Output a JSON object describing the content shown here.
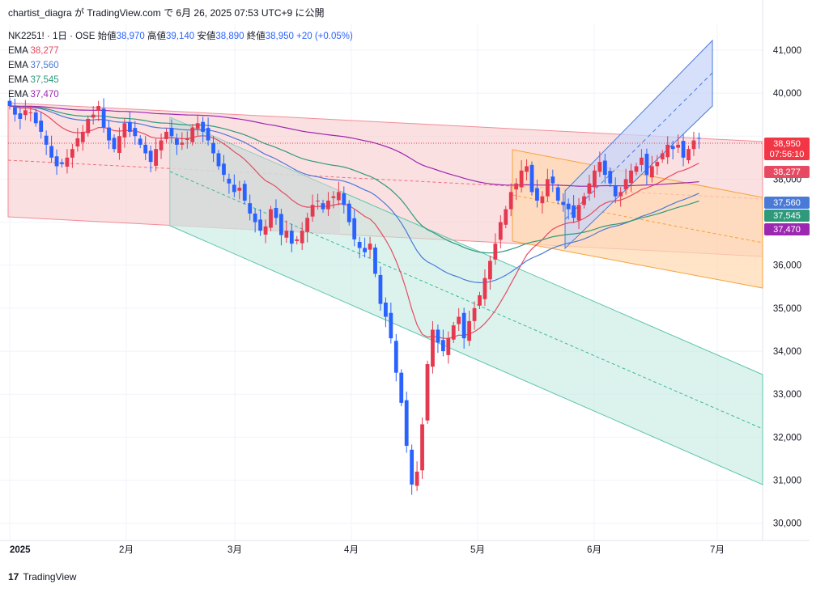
{
  "header": {
    "attribution": "chartist_diagra が TradingView.com で 6月 26, 2025 07:53 UTC+9 に公開"
  },
  "legend": {
    "symbol": "NK2251! · 1日 · OSE",
    "open_label": "始値",
    "open": "38,970",
    "high_label": "高値",
    "high": "39,140",
    "low_label": "安値",
    "low": "38,890",
    "close_label": "終値",
    "close": "38,950",
    "change": "+20 (+0.05%)",
    "emas": [
      {
        "label": "EMA",
        "value": "38,277",
        "color": "#e64a62"
      },
      {
        "label": "EMA",
        "value": "37,560",
        "color": "#4a7ad8"
      },
      {
        "label": "EMA",
        "value": "37,545",
        "color": "#2e9a7a"
      },
      {
        "label": "EMA",
        "value": "37,470",
        "color": "#9c27b0"
      }
    ]
  },
  "price_tags": {
    "last": "38,950",
    "countdown": "07:56:10"
  },
  "footer": {
    "brand": "TradingView",
    "logo_mark": "17"
  },
  "colors": {
    "up": "#e53950",
    "down": "#2962ff",
    "pink_channel": "#f7c6cb",
    "grey_channel": "#d9d9d9",
    "teal_channel": "#bfe9df",
    "orange_channel": "#ffd8b0",
    "blue_channel": "#c8d6f8"
  },
  "chart_data": {
    "type": "candlestick",
    "y_axis": {
      "ticks": [
        30000,
        31000,
        32000,
        33000,
        34000,
        35000,
        36000,
        37000,
        38000,
        39000,
        40000,
        41000
      ],
      "tick_labels": [
        "30,000",
        "31,000",
        "32,000",
        "33,000",
        "34,000",
        "35,000",
        "36,000",
        "",
        "38,000",
        "",
        "40,000",
        "41,000"
      ],
      "ylim": [
        29600,
        41600
      ]
    },
    "x_axis": {
      "tick_labels": [
        "2025",
        "2月",
        "3月",
        "4月",
        "5月",
        "6月",
        "7月"
      ]
    },
    "closes": [
      39700,
      39500,
      39400,
      39600,
      39550,
      39300,
      39100,
      38800,
      38500,
      38300,
      38350,
      38500,
      38700,
      38950,
      39100,
      39400,
      39500,
      39700,
      39200,
      38900,
      38700,
      39000,
      39300,
      39100,
      39000,
      38800,
      38600,
      38400,
      38700,
      38900,
      39100,
      39000,
      38800,
      38850,
      38950,
      39200,
      39300,
      39100,
      38900,
      38600,
      38300,
      38100,
      37900,
      37700,
      37800,
      37500,
      37200,
      37000,
      36800,
      36900,
      37300,
      37100,
      36700,
      36800,
      36500,
      36600,
      36800,
      37100,
      37400,
      37500,
      37300,
      37500,
      37600,
      37700,
      37400,
      37000,
      36600,
      36400,
      36300,
      36500,
      35800,
      35100,
      34800,
      34300,
      33500,
      32800,
      31800,
      30900,
      31200,
      32300,
      33700,
      34500,
      34200,
      34000,
      34300,
      34600,
      34800,
      34300,
      34700,
      35000,
      35300,
      35700,
      36100,
      36500,
      37000,
      37300,
      37700,
      37900,
      38200,
      38300,
      37700,
      37500,
      37600,
      38000,
      37900,
      37500,
      37400,
      37300,
      37100,
      37400,
      37600,
      37900,
      38200,
      38400,
      38100,
      37900,
      37600,
      37700,
      38000,
      38200,
      38300,
      38500,
      38100,
      38300,
      38400,
      38600,
      38800,
      38700,
      38800,
      38500,
      38700,
      38900,
      38950
    ]
  }
}
